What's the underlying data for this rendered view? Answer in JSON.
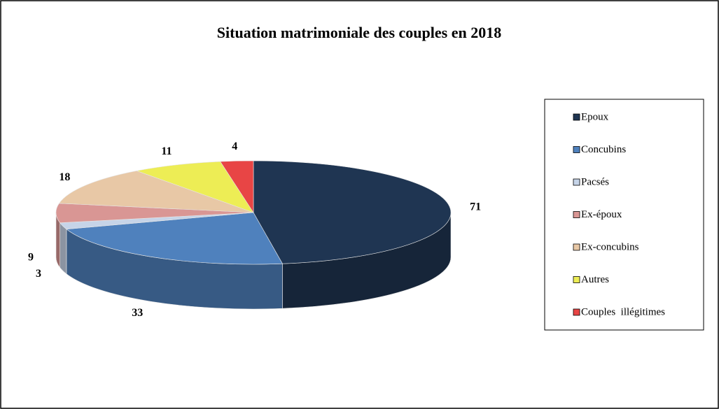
{
  "chart_data": {
    "type": "pie",
    "title": "Situation matrimoniale des couples en 2018",
    "categories": [
      "Epoux",
      "Concubins",
      "Pacsés",
      "Ex-époux",
      "Ex-concubins",
      "Autres",
      "Couples  illégitimes"
    ],
    "values": [
      71,
      33,
      3,
      9,
      18,
      11,
      4
    ],
    "colors": [
      "#1f3552",
      "#4f81bd",
      "#c6d4e8",
      "#d99694",
      "#e8c8a6",
      "#eded55",
      "#e84545"
    ],
    "legend": "right"
  }
}
